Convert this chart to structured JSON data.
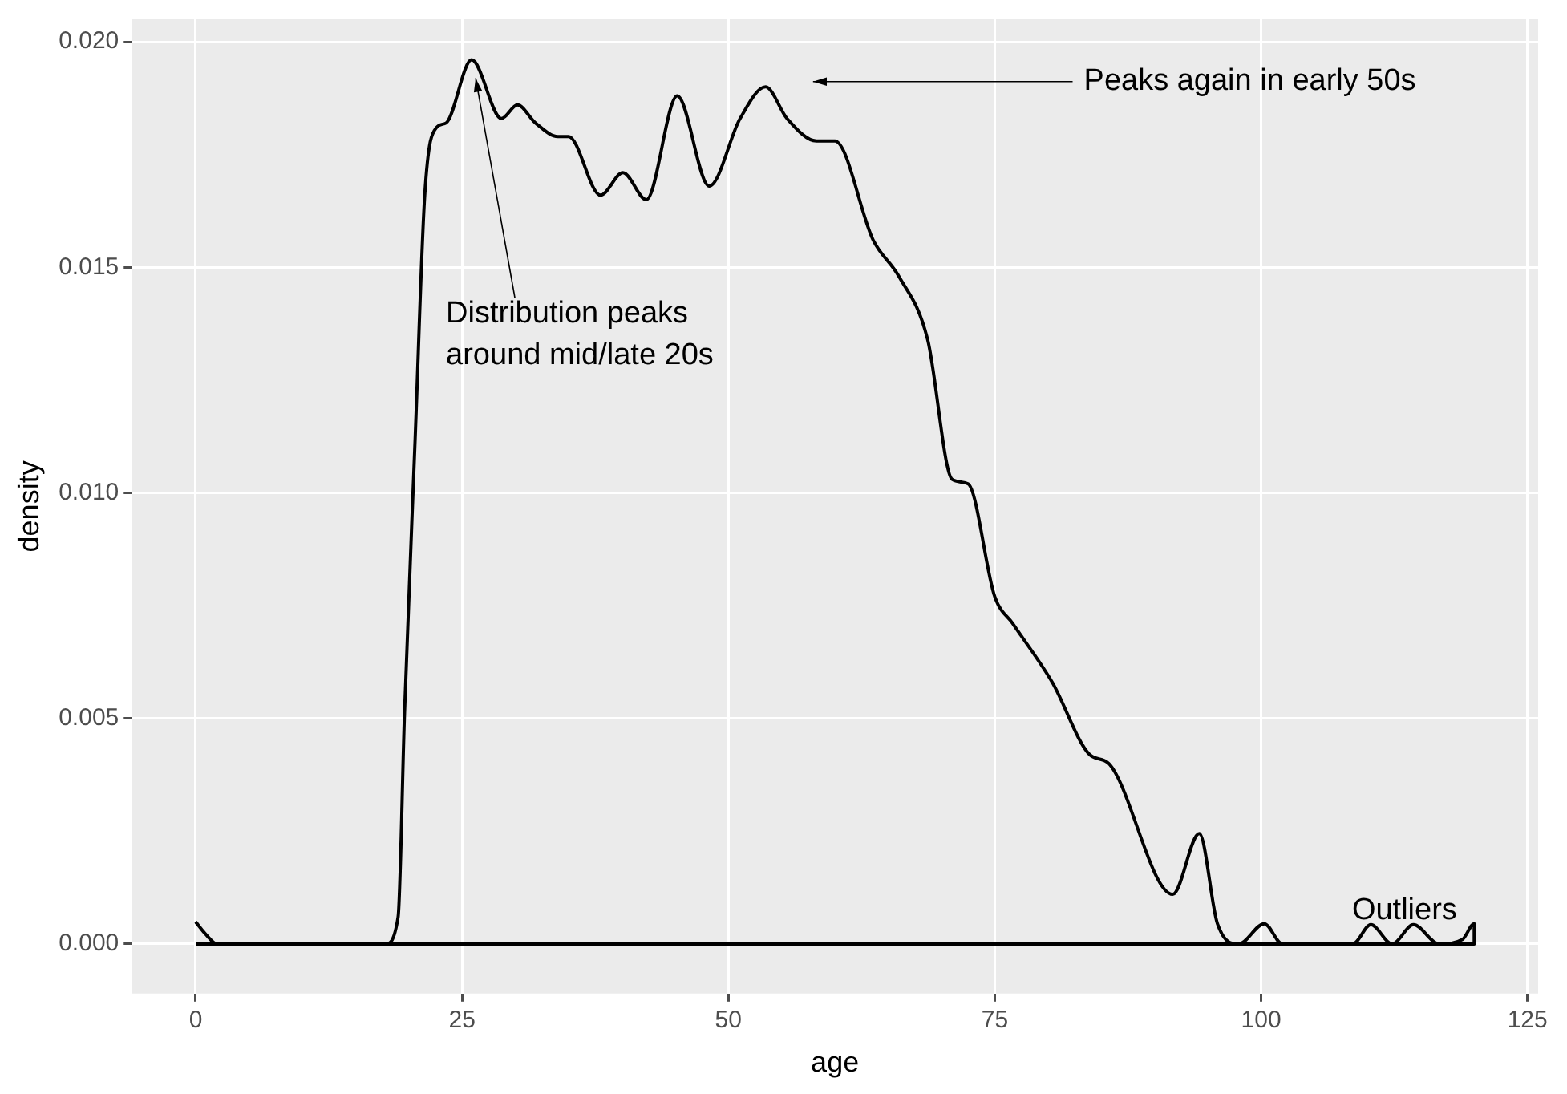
{
  "chart_data": {
    "type": "line",
    "xlabel": "age",
    "ylabel": "density",
    "xlim": [
      -6,
      126
    ],
    "xticks": [
      0,
      25,
      50,
      75,
      100,
      125
    ],
    "ylim": [
      -0.0011,
      0.0205
    ],
    "yticks": [
      {
        "value": 0,
        "label": "0.000"
      },
      {
        "value": 0.005,
        "label": "0.005"
      },
      {
        "value": 0.01,
        "label": "0.010"
      },
      {
        "value": 0.015,
        "label": "0.015"
      },
      {
        "value": 0.02,
        "label": "0.020"
      }
    ],
    "grid": true,
    "legend": false,
    "marker": "none",
    "line_style": "solid",
    "series": [
      {
        "color": "#000000",
        "x": [
          0,
          1,
          2,
          3,
          10,
          17.8,
          19,
          19.6,
          20.6,
          21.5,
          22.6,
          23.5,
          25.9,
          28.7,
          30.2,
          31.9,
          34,
          35,
          38,
          40.1,
          42.3,
          45.2,
          48.2,
          51.1,
          53.5,
          55.5,
          58.3,
          60,
          63.6,
          66,
          68.7,
          71,
          72.5,
          75,
          76.7,
          80.4,
          83.9,
          85.7,
          91.7,
          94.2,
          95.9,
          97.9,
          100.3,
          102,
          108.6,
          110.3,
          112.3,
          114.3,
          116.7,
          118.9,
          120,
          120,
          0
        ],
        "values": [
          0.00049,
          0.0002,
          0,
          0,
          0,
          0,
          0.0006,
          0.0051,
          0.0112,
          0.0166,
          0.0181,
          0.0182,
          0.0196,
          0.0183,
          0.0186,
          0.0182,
          0.0179,
          0.0179,
          0.0166,
          0.0171,
          0.0165,
          0.0188,
          0.0168,
          0.0183,
          0.019,
          0.0183,
          0.0178,
          0.0178,
          0.0156,
          0.0148,
          0.0134,
          0.0103,
          0.0102,
          0.0077,
          0.0071,
          0.0058,
          0.0042,
          0.004,
          0.0011,
          0.00245,
          0.00045,
          0,
          0.00045,
          0,
          0,
          0.00043,
          0,
          0.00043,
          0,
          0.0001,
          0.00045,
          0,
          0
        ]
      }
    ],
    "annotations": [
      {
        "text": "Distribution peaks\naround mid/late 20s",
        "x": 26.2,
        "y": 0.0193
      },
      "Peaks again in early 50s",
      "Outliers"
    ]
  }
}
